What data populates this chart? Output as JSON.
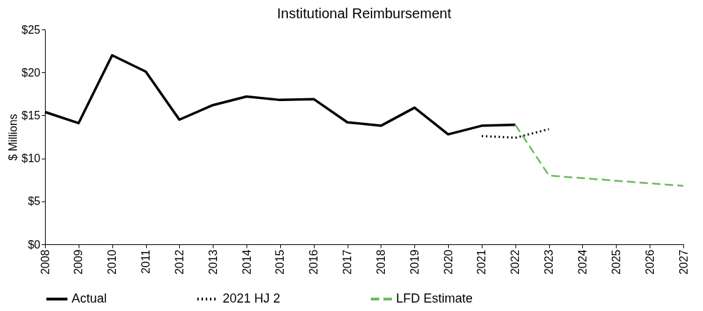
{
  "chart_data": {
    "type": "line",
    "title": "Institutional  Reimbursement",
    "ylabel": "$ Millions",
    "categories": [
      "2008",
      "2009",
      "2010",
      "2011",
      "2012",
      "2013",
      "2014",
      "2015",
      "2016",
      "2017",
      "2018",
      "2019",
      "2020",
      "2021",
      "2022",
      "2023",
      "2024",
      "2025",
      "2026",
      "2027"
    ],
    "series": [
      {
        "name": "Actual",
        "color": "#000000",
        "line_style": "solid",
        "values": [
          15.4,
          14.1,
          22.0,
          20.1,
          14.5,
          16.2,
          17.2,
          16.8,
          16.9,
          14.2,
          13.8,
          15.9,
          12.8,
          13.8,
          13.9,
          null,
          null,
          null,
          null,
          null
        ]
      },
      {
        "name": "2021 HJ 2",
        "color": "#000000",
        "line_style": "dotted",
        "values": [
          null,
          null,
          null,
          null,
          null,
          null,
          null,
          null,
          null,
          null,
          null,
          null,
          null,
          12.6,
          12.4,
          13.4,
          null,
          null,
          null,
          null
        ]
      },
      {
        "name": "LFD Estimate",
        "color": "#6dbb5f",
        "line_style": "dashed",
        "values": [
          null,
          null,
          null,
          null,
          null,
          null,
          null,
          null,
          null,
          null,
          null,
          null,
          null,
          null,
          13.9,
          8.0,
          7.7,
          7.4,
          7.1,
          6.8
        ]
      }
    ],
    "ylim": [
      0,
      25
    ],
    "yticks": [
      {
        "value": 0,
        "label": "$0"
      },
      {
        "value": 5,
        "label": "$5"
      },
      {
        "value": 10,
        "label": "$10"
      },
      {
        "value": 15,
        "label": "$15"
      },
      {
        "value": 20,
        "label": "$20"
      },
      {
        "value": 25,
        "label": "$25"
      }
    ],
    "grid": false,
    "legend": "bottom"
  }
}
